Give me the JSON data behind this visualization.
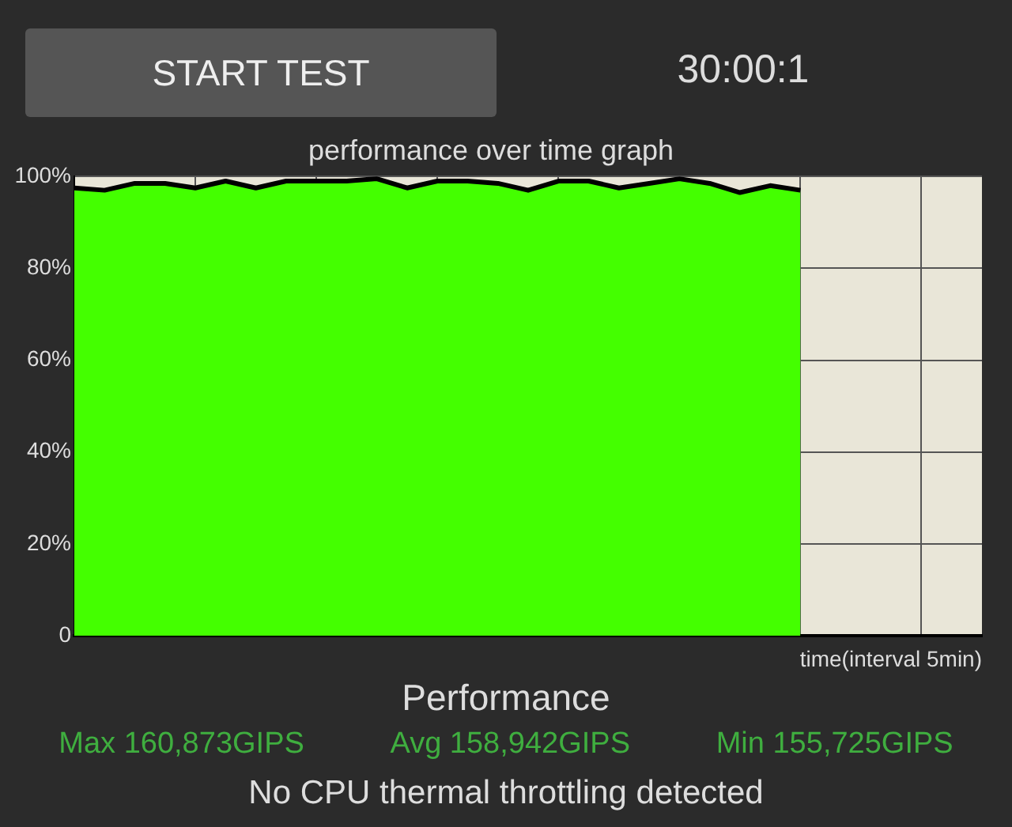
{
  "chart_data": {
    "type": "area",
    "title": "performance over time graph",
    "xlabel": "time(interval 5min)",
    "categories": [
      null,
      null,
      null,
      null,
      null,
      null,
      null,
      null,
      null,
      null,
      null,
      null,
      null,
      null,
      null,
      null,
      null,
      null,
      null,
      null,
      null,
      null,
      null,
      null,
      null,
      null,
      null,
      null,
      null,
      null,
      null
    ],
    "series": [
      {
        "color": "#44ff00",
        "values": [
          97.5,
          97,
          98.5,
          98.5,
          97.5,
          99,
          97.5,
          99,
          99,
          99,
          99.5,
          97.5,
          99,
          99,
          98.5,
          97,
          99,
          99,
          97.5,
          98.5,
          99.5,
          98.5,
          96.5,
          98,
          97,
          null,
          null,
          null,
          null,
          null,
          null
        ]
      }
    ],
    "ylim": [
      0,
      100
    ],
    "yticks": [
      {
        "value": 0,
        "label": "0"
      },
      {
        "value": 20,
        "label": "20%"
      },
      {
        "value": 40,
        "label": "40%"
      },
      {
        "value": 60,
        "label": "60%"
      },
      {
        "value": 80,
        "label": "80%"
      },
      {
        "value": 100,
        "label": "100%"
      }
    ],
    "grid": true,
    "legend": false,
    "marker": "none",
    "line_style": "solid",
    "tick_labels": "y",
    "annotations": [
      "START TEST",
      "30:00:1",
      "Performance",
      "Max 160,873GIPS",
      "Avg 158,942GIPS",
      "Min 155,725GIPS",
      "No CPU thermal throttling detected"
    ]
  }
}
